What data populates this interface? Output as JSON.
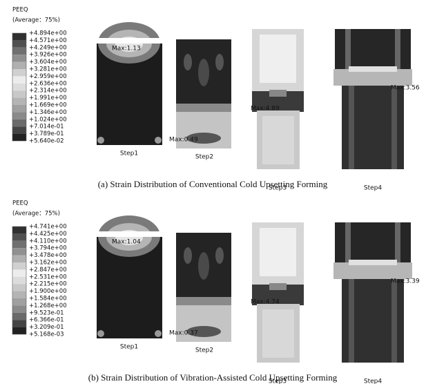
{
  "panels": [
    {
      "legend": {
        "title": "PEEQ",
        "subtitle": "(Average：75%)",
        "labels": [
          "+4.894e+00",
          "+4.571e+00",
          "+4.249e+00",
          "+3.926e+00",
          "+3.604e+00",
          "+3.281e+00",
          "+2.959e+00",
          "+2.636e+00",
          "+2.314e+00",
          "+1.991e+00",
          "+1.669e+00",
          "+1.346e+00",
          "+1.024e+00",
          "+7.014e-01",
          "+3.789e-01",
          "+5.640e-02"
        ]
      },
      "steps": [
        {
          "label": "Step1",
          "max": "Max:1.13"
        },
        {
          "label": "Step2",
          "max": "Max:0.49"
        },
        {
          "label": "Step3",
          "max": "Max:4.89"
        },
        {
          "label": "Step4",
          "max": "Max:3.56"
        }
      ],
      "caption": "(a) Strain Distribution of Conventional Cold Upsetting Forming"
    },
    {
      "legend": {
        "title": "PEEQ",
        "subtitle": "(Average：75%)",
        "labels": [
          "+4.741e+00",
          "+4.425e+00",
          "+4.110e+00",
          "+3.794e+00",
          "+3.478e+00",
          "+3.162e+00",
          "+2.847e+00",
          "+2.531e+00",
          "+2.215e+00",
          "+1.900e+00",
          "+1.584e+00",
          "+1.268e+00",
          "+9.523e-01",
          "+6.366e-01",
          "+3.209e-01",
          "+5.168e-03"
        ]
      },
      "steps": [
        {
          "label": "Step1",
          "max": "Max:1.04"
        },
        {
          "label": "Step2",
          "max": "Max:0.37"
        },
        {
          "label": "Step3",
          "max": "Max:4.74"
        },
        {
          "label": "Step4",
          "max": "Max:3.39"
        }
      ],
      "caption": "(b) Strain Distribution of Vibration-Assisted Cold Upsetting Forming"
    }
  ]
}
